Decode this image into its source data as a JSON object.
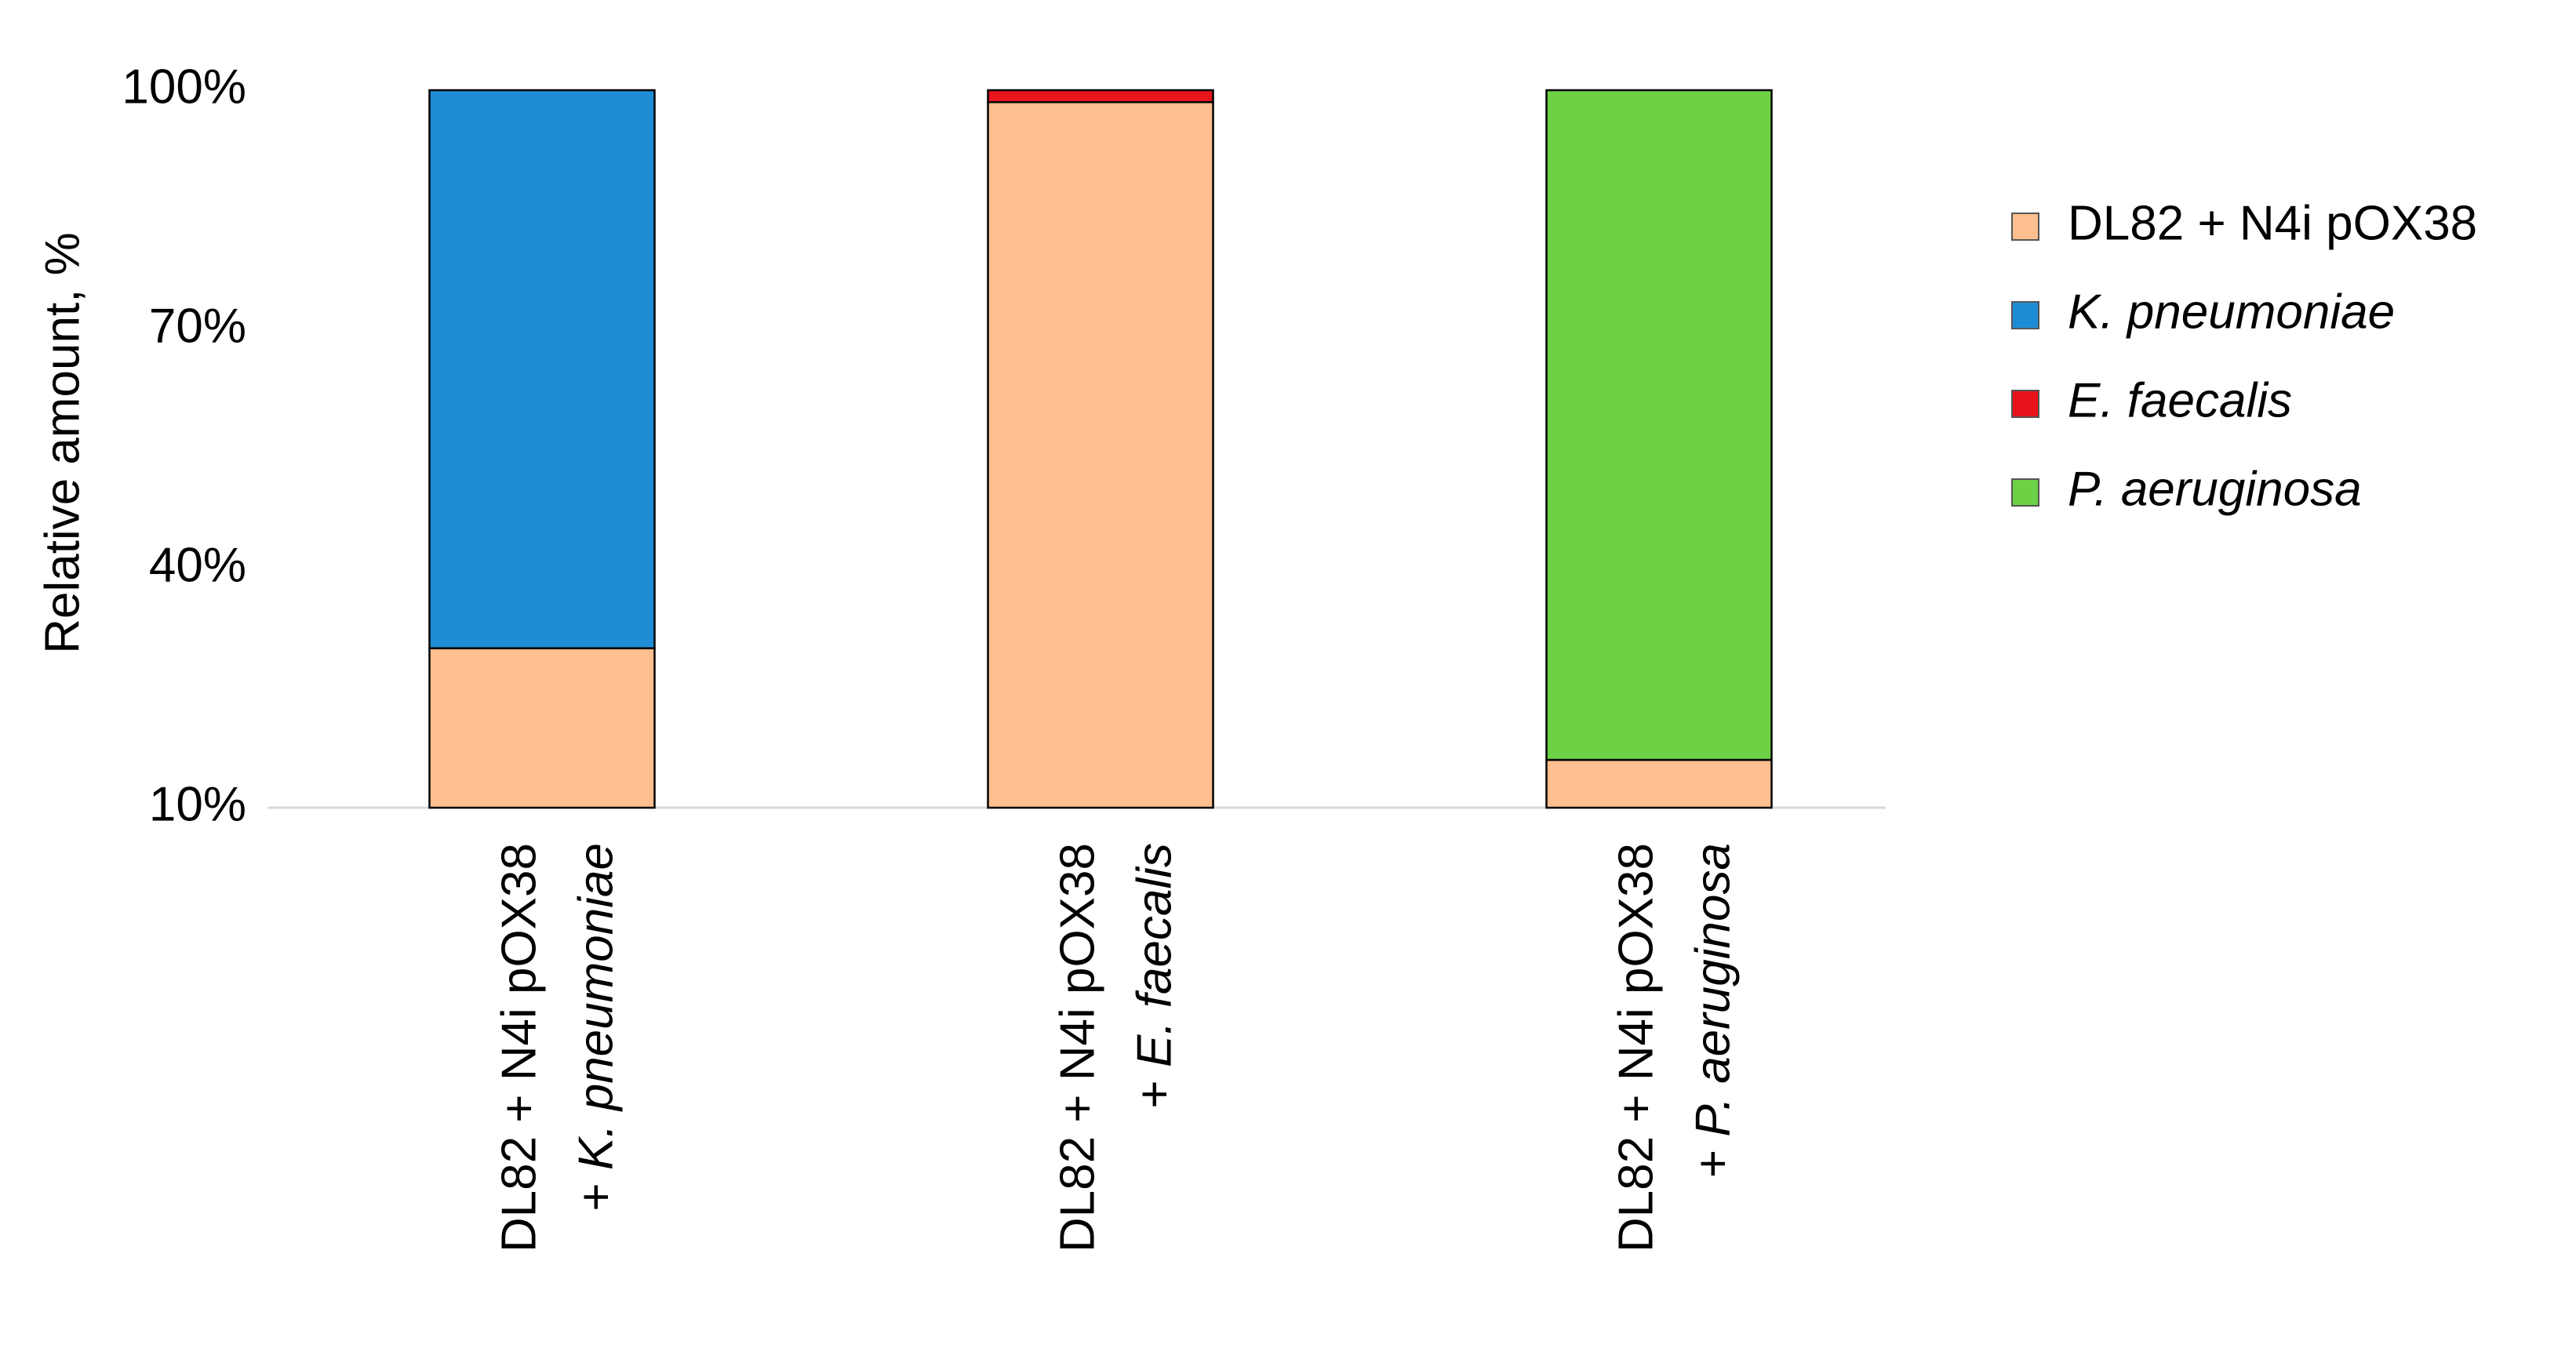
{
  "chart_data": {
    "type": "stacked_bar",
    "y_label": "Relative amount, %",
    "categories": [
      [
        "DL82 + N4i pOX38",
        "+ K. pneumoniae"
      ],
      [
        "DL82 + N4i pOX38",
        "+ E. faecalis"
      ],
      [
        "DL82 + N4i pOX38",
        "+ P. aeruginosa"
      ]
    ],
    "series": [
      {
        "name": "DL82 + N4i pOX38",
        "color": "#fdbf8f",
        "values": [
          30,
          98.5,
          16
        ]
      },
      {
        "name": "K. pneumoniae",
        "color": "#1f8dd6",
        "values": [
          70,
          0,
          0
        ]
      },
      {
        "name": "E. faecalis",
        "color": "#e8141b",
        "values": [
          0,
          1.5,
          0
        ]
      },
      {
        "name": "P. aeruginosa",
        "color": "#6dd145",
        "values": [
          0,
          0,
          84
        ]
      }
    ],
    "ylim": [
      10,
      100
    ],
    "yticks": [
      {
        "value": 10,
        "label": "10%"
      },
      {
        "value": 40,
        "label": "40%"
      },
      {
        "value": 70,
        "label": "70%"
      },
      {
        "value": 100,
        "label": "100%"
      }
    ],
    "grid": false,
    "legend": "right"
  }
}
